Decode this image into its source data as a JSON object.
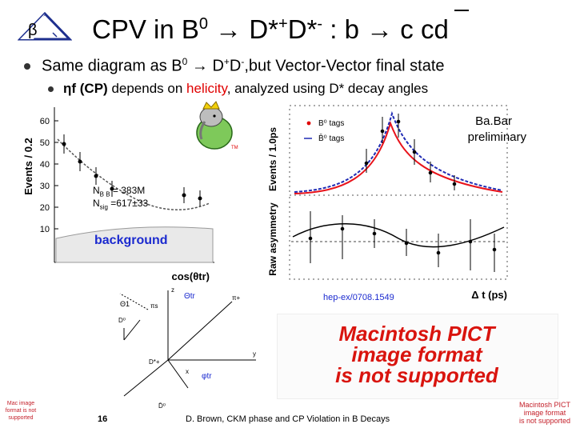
{
  "header": {
    "beta_symbol": "β",
    "title_prefix": "CPV in B",
    "title_sup0": "0",
    "title_arrow": " → D*",
    "title_sup1": "+",
    "title_d": "D*",
    "title_sup2": "-",
    "title_suffix": " : b → c cd",
    "overbar_char": "c"
  },
  "bullets": {
    "b1_prefix": "Same diagram as B",
    "b1_sup0": "0",
    "b1_mid": " → D",
    "b1_sup1": "+",
    "b1_d": "D",
    "b1_sup2": "-",
    "b1_suffix": ",but Vector-Vector final state",
    "b2_eta": "ηf",
    "b2_cp": " (CP)",
    "b2_mid": " depends on ",
    "b2_helicity": "helicity",
    "b2_suffix": ", analyzed using D* decay angles"
  },
  "left_plot": {
    "ylabel": "Events / 0.2",
    "xlabel": "cos(θtr)",
    "yticks": [
      "60",
      "50",
      "40",
      "30",
      "20",
      "10"
    ],
    "nbb": "N",
    "nbb_sub": "B B",
    "nbb_val": " = 383M",
    "nsig": "N",
    "nsig_sub": "sig",
    "nsig_val": " =617±33",
    "background": "background",
    "tm": "TM"
  },
  "right_plot": {
    "ylabel_top": "Events / 1.0ps",
    "ylabel_bottom": "Raw asymmetry",
    "legend1": "B⁰ tags",
    "legend2": "B̄⁰ tags",
    "babar": "Ba.Bar",
    "preliminary": "preliminary",
    "xlabel": "Δ t (ps)",
    "reference": "hep-ex/0708.1549"
  },
  "diagram": {
    "theta1": "Θ1",
    "theta_tr": "Θtr",
    "phi_tr": "φtr",
    "pi_plus": "π+",
    "pi_s": "πs",
    "d0": "D⁰",
    "d_star": "D*+",
    "d0_bottom": "D̄⁰",
    "x_axis": "x",
    "y_axis": "y",
    "z_axis": "z"
  },
  "pict": {
    "line1": "Macintosh PICT",
    "line2": "image format",
    "line3": "is not supported"
  },
  "footer": {
    "page_number": "16",
    "citation": "D. Brown, CKM phase and CP Violation in B Decays",
    "left_mini": "Mac image format is not supported",
    "right_mini1": "Macintosh PICT",
    "right_mini2": "image format",
    "right_mini3": "is not supported"
  },
  "colors": {
    "accent_red": "#e00000",
    "fit_red": "#e8131b",
    "fit_blue": "#1f2bb4",
    "pict_red": "#d9140e",
    "triangle_blue": "#1e2f8e"
  }
}
